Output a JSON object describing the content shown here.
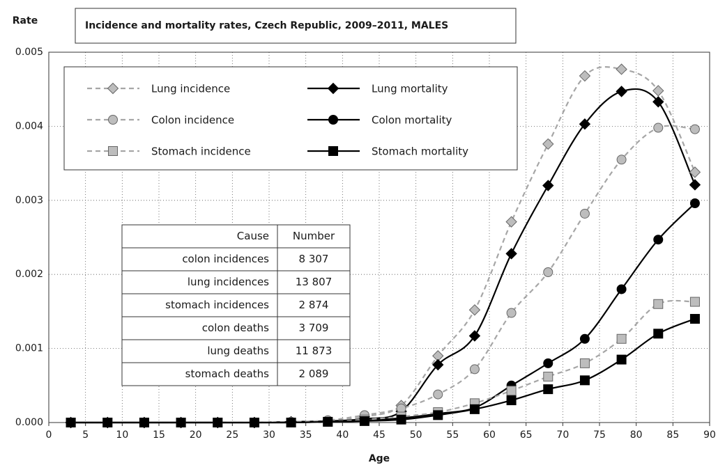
{
  "chart_data": {
    "type": "line",
    "title": "Incidence and mortality rates, Czech Republic, 2009–2011, MALES",
    "y_label": "Rate",
    "x_label": "Age",
    "x": [
      3,
      8,
      13,
      18,
      23,
      28,
      33,
      38,
      43,
      48,
      53,
      58,
      63,
      68,
      73,
      78,
      83,
      88
    ],
    "xlim": [
      0,
      90
    ],
    "xticks": [
      0,
      5,
      10,
      15,
      20,
      25,
      30,
      35,
      40,
      45,
      50,
      55,
      60,
      65,
      70,
      75,
      80,
      85,
      90
    ],
    "ylim": [
      0,
      0.005
    ],
    "yticks": [
      {
        "value": 0,
        "label": "0.000"
      },
      0.001,
      0.002,
      0.003,
      0.004,
      0.005
    ],
    "grid": true,
    "legend": "upper left",
    "series": [
      {
        "name": "Lung incidence",
        "color": "#a6a6a6",
        "line_color": "#a6a6a6",
        "dashed": true,
        "marker": "diamond",
        "values": [
          0,
          0,
          0,
          0,
          0,
          0,
          1e-05,
          2e-05,
          8e-05,
          0.00023,
          0.0009,
          0.00152,
          0.00271,
          0.00376,
          0.00468,
          0.00477,
          0.00448,
          0.00338
        ]
      },
      {
        "name": "Lung mortality",
        "color": "#000000",
        "line_color": "#000000",
        "dashed": false,
        "marker": "diamond",
        "values": [
          0,
          0,
          0,
          0,
          0,
          0,
          1e-05,
          2e-05,
          5e-05,
          0.00015,
          0.00078,
          0.00117,
          0.00228,
          0.0032,
          0.00403,
          0.00447,
          0.00433,
          0.00321
        ]
      },
      {
        "name": "Colon incidence",
        "color": "#a6a6a6",
        "line_color": "#a6a6a6",
        "dashed": true,
        "marker": "circle",
        "values": [
          0,
          0,
          0,
          0,
          0,
          0,
          1e-05,
          3e-05,
          0.0001,
          0.00019,
          0.00038,
          0.00072,
          0.00148,
          0.00203,
          0.00282,
          0.00355,
          0.00398,
          0.00396
        ]
      },
      {
        "name": "Colon mortality",
        "color": "#000000",
        "line_color": "#000000",
        "dashed": false,
        "marker": "circle",
        "values": [
          0,
          0,
          0,
          0,
          0,
          0,
          0,
          1e-05,
          3e-05,
          6e-05,
          0.00012,
          0.0002,
          0.0005,
          0.0008,
          0.00113,
          0.0018,
          0.00247,
          0.00296
        ]
      },
      {
        "name": "Stomach incidence",
        "color": "#a6a6a6",
        "line_color": "#a6a6a6",
        "dashed": true,
        "marker": "square",
        "values": [
          0,
          0,
          0,
          0,
          0,
          0,
          0,
          1e-05,
          4e-05,
          8e-05,
          0.00014,
          0.00026,
          0.00043,
          0.00062,
          0.0008,
          0.00113,
          0.0016,
          0.00163
        ]
      },
      {
        "name": "Stomach mortality",
        "color": "#000000",
        "line_color": "#000000",
        "dashed": false,
        "marker": "square",
        "values": [
          0,
          0,
          0,
          0,
          0,
          0,
          0,
          1e-05,
          2e-05,
          4e-05,
          0.0001,
          0.00018,
          0.0003,
          0.00045,
          0.00057,
          0.00085,
          0.0012,
          0.0014
        ]
      }
    ],
    "table": {
      "header": [
        "Cause",
        "Number"
      ],
      "rows": [
        [
          "colon incidences",
          "8 307"
        ],
        [
          "lung incidences",
          "13 807"
        ],
        [
          "stomach incidences",
          "2 874"
        ],
        [
          "colon deaths",
          "3 709"
        ],
        [
          "lung deaths",
          "11 873"
        ],
        [
          "stomach deaths",
          "2 089"
        ]
      ]
    }
  }
}
